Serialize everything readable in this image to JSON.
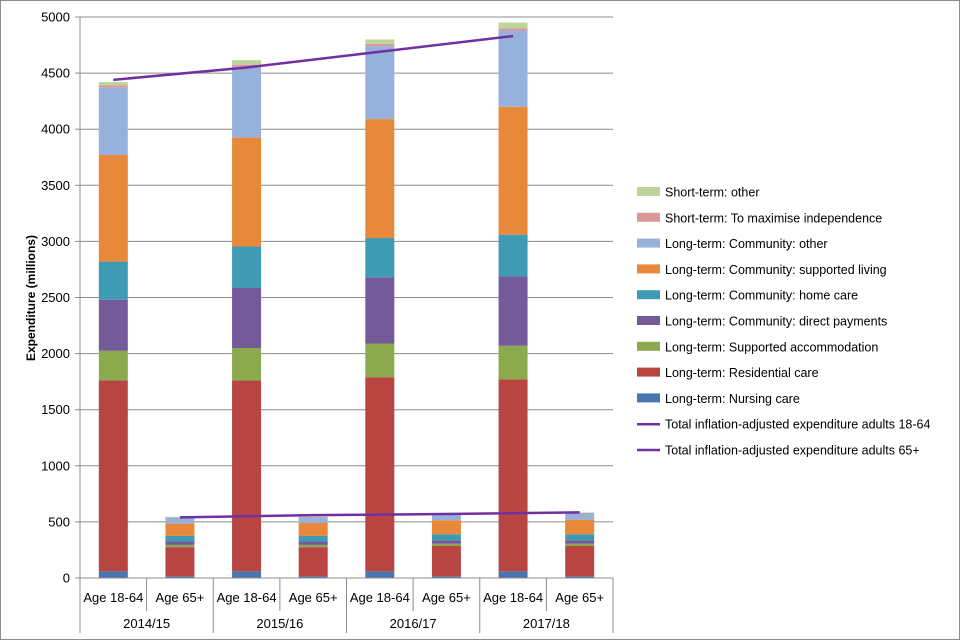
{
  "chart_data": {
    "type": "bar",
    "stacked": true,
    "ylabel": "Expenditure (millions)",
    "ylim": [
      0,
      5000
    ],
    "yticks": [
      "0",
      "500",
      "1000",
      "1500",
      "2000",
      "2500",
      "3000",
      "3500",
      "4000",
      "4500",
      "5000"
    ],
    "years": [
      "2014/15",
      "2015/16",
      "2016/17",
      "2017/18"
    ],
    "categories": [
      "Age 18-64",
      "Age 65+",
      "Age 18-64",
      "Age 65+",
      "Age 18-64",
      "Age 65+",
      "Age 18-64",
      "Age 65+"
    ],
    "series": [
      {
        "name": "Long-term: Nursing care",
        "color": "#4a74ad",
        "values": [
          60,
          15,
          60,
          15,
          60,
          15,
          60,
          15
        ]
      },
      {
        "name": "Long-term: Residential care",
        "color": "#b84542",
        "values": [
          1700,
          260,
          1700,
          260,
          1730,
          270,
          1710,
          270
        ]
      },
      {
        "name": "Long-term: Supported accommodation",
        "color": "#8ba94d",
        "values": [
          265,
          20,
          290,
          20,
          300,
          20,
          300,
          20
        ]
      },
      {
        "name": "Long-term: Community: direct payments",
        "color": "#745a98",
        "values": [
          455,
          30,
          535,
          30,
          590,
          30,
          620,
          30
        ]
      },
      {
        "name": "Long-term: Community: home care",
        "color": "#3f9ab3",
        "values": [
          340,
          50,
          370,
          50,
          350,
          55,
          370,
          55
        ]
      },
      {
        "name": "Long-term: Community: supported living",
        "color": "#e8883a",
        "values": [
          950,
          110,
          970,
          115,
          1060,
          125,
          1140,
          130
        ]
      },
      {
        "name": "Long-term: Community: other",
        "color": "#96b2dc",
        "values": [
          600,
          50,
          630,
          50,
          650,
          55,
          680,
          55
        ]
      },
      {
        "name": "Short-term: To maximise independence",
        "color": "#dc9898",
        "values": [
          20,
          5,
          20,
          5,
          20,
          5,
          20,
          5
        ]
      },
      {
        "name": "Short-term: other",
        "color": "#bdd49a",
        "values": [
          30,
          5,
          40,
          5,
          40,
          5,
          50,
          5
        ]
      }
    ],
    "lines": [
      {
        "name": "Total inflation-adjusted expenditure adults 18-64",
        "color": "#7030a0",
        "x_index": [
          0,
          2,
          4,
          6
        ],
        "values": [
          4440,
          4550,
          4690,
          4830
        ]
      },
      {
        "name": "Total inflation-adjusted expenditure adults 65+",
        "color": "#7030a0",
        "x_index": [
          1,
          3,
          5,
          7
        ],
        "values": [
          540,
          560,
          570,
          585
        ]
      }
    ]
  }
}
